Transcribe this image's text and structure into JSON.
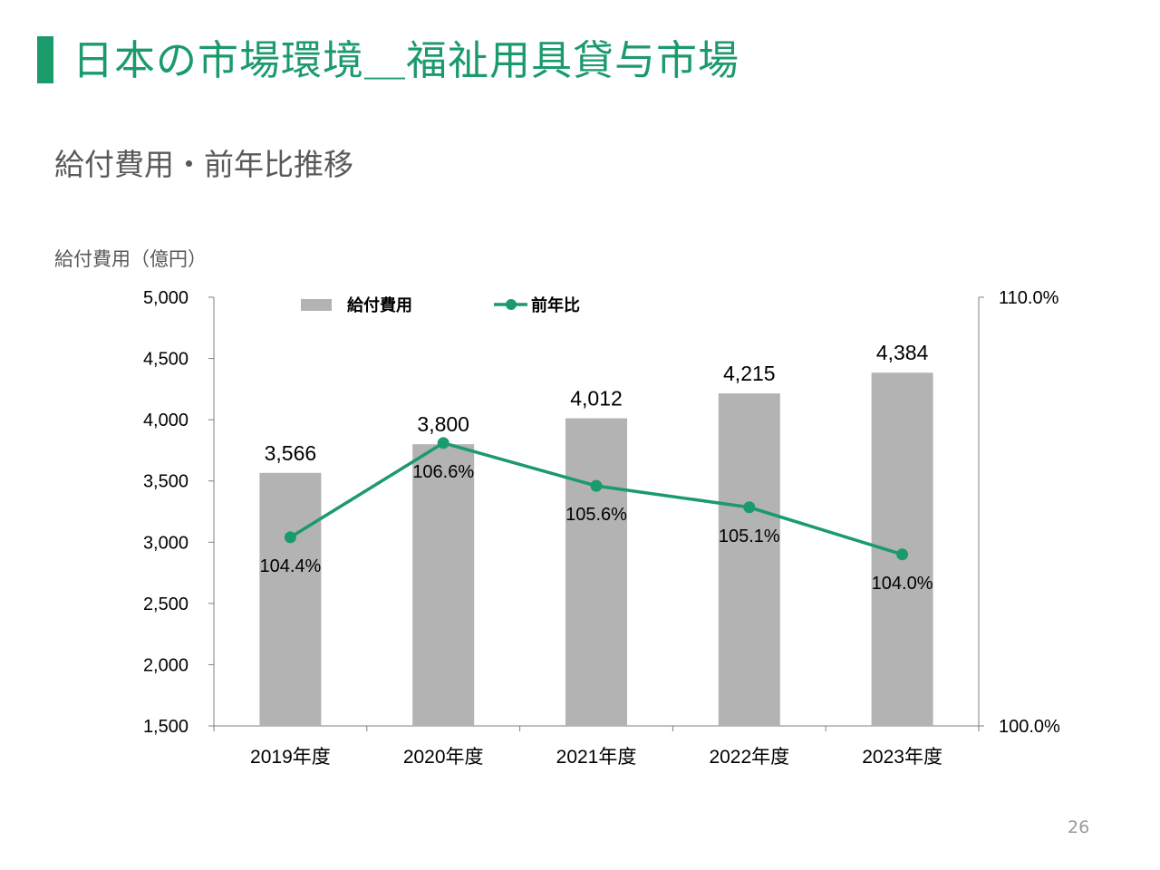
{
  "header": {
    "title": "日本の市場環境＿福祉用具貸与市場",
    "subtitle": "給付費用・前年比推移",
    "unit_label": "給付費用（億円）"
  },
  "page_number": "26",
  "colors": {
    "accent": "#1b9a6c",
    "bar": "#b3b3b3",
    "line": "#1b9a6c"
  },
  "chart_data": {
    "type": "bar",
    "categories": [
      "2019年度",
      "2020年度",
      "2021年度",
      "2022年度",
      "2023年度"
    ],
    "series": [
      {
        "name": "給付費用",
        "type": "bar",
        "axis": "left",
        "values": [
          3566,
          3800,
          4012,
          4215,
          4384
        ],
        "labels": [
          "3,566",
          "3,800",
          "4,012",
          "4,215",
          "4,384"
        ]
      },
      {
        "name": "前年比",
        "type": "line",
        "axis": "right",
        "values": [
          104.4,
          106.6,
          105.6,
          105.1,
          104.0
        ],
        "labels": [
          "104.4%",
          "106.6%",
          "105.6%",
          "105.1%",
          "104.0%"
        ]
      }
    ],
    "y_left": {
      "min": 1500,
      "max": 5000,
      "step": 500,
      "ticks": [
        "5,000",
        "4,500",
        "4,000",
        "3,500",
        "3,000",
        "2,500",
        "2,000",
        "1,500"
      ]
    },
    "y_right": {
      "min": 100.0,
      "max": 110.0,
      "ticks": [
        "110.0%",
        "100.0%"
      ]
    },
    "legend_position": "top"
  }
}
